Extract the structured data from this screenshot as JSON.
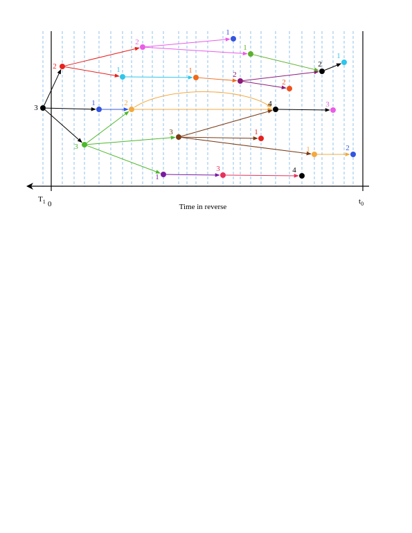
{
  "axis": {
    "left_label": "T",
    "left_sub": "1",
    "zero": "0",
    "title": "Time in reverse",
    "right_label": "t",
    "right_sub": "0"
  },
  "nodes": [
    {
      "label": "3",
      "color": "#000000"
    },
    {
      "label": "2",
      "color": "#e8201c"
    },
    {
      "label": "3",
      "color": "#4cb82a"
    },
    {
      "label": "1",
      "color": "#3355e0"
    },
    {
      "label": "2",
      "color": "#f3a940"
    },
    {
      "label": "2",
      "color": "#ea5ce8"
    },
    {
      "label": "1",
      "color": "#2ec6ea"
    },
    {
      "label": "1",
      "color": "#3355e0"
    },
    {
      "label": "1",
      "color": "#5cb02a"
    },
    {
      "label": "1",
      "color": "#f06a18"
    },
    {
      "label": "2",
      "color": "#8c1a78"
    },
    {
      "label": "2",
      "color": "#f0501c"
    },
    {
      "label": "2",
      "color": "#000000"
    },
    {
      "label": "1",
      "color": "#2ec6ea"
    },
    {
      "label": "4",
      "color": "#000000"
    },
    {
      "label": "3",
      "color": "#ea5ce8"
    },
    {
      "label": "3",
      "color": "#7a3a14"
    },
    {
      "label": "1",
      "color": "#e8201c"
    },
    {
      "label": "1",
      "color": "#f3a940"
    },
    {
      "label": "2",
      "color": "#3355e0"
    },
    {
      "label": "1",
      "color": "#7a1aa0"
    },
    {
      "label": "3",
      "color": "#e8305a"
    },
    {
      "label": "4",
      "color": "#000000"
    }
  ]
}
